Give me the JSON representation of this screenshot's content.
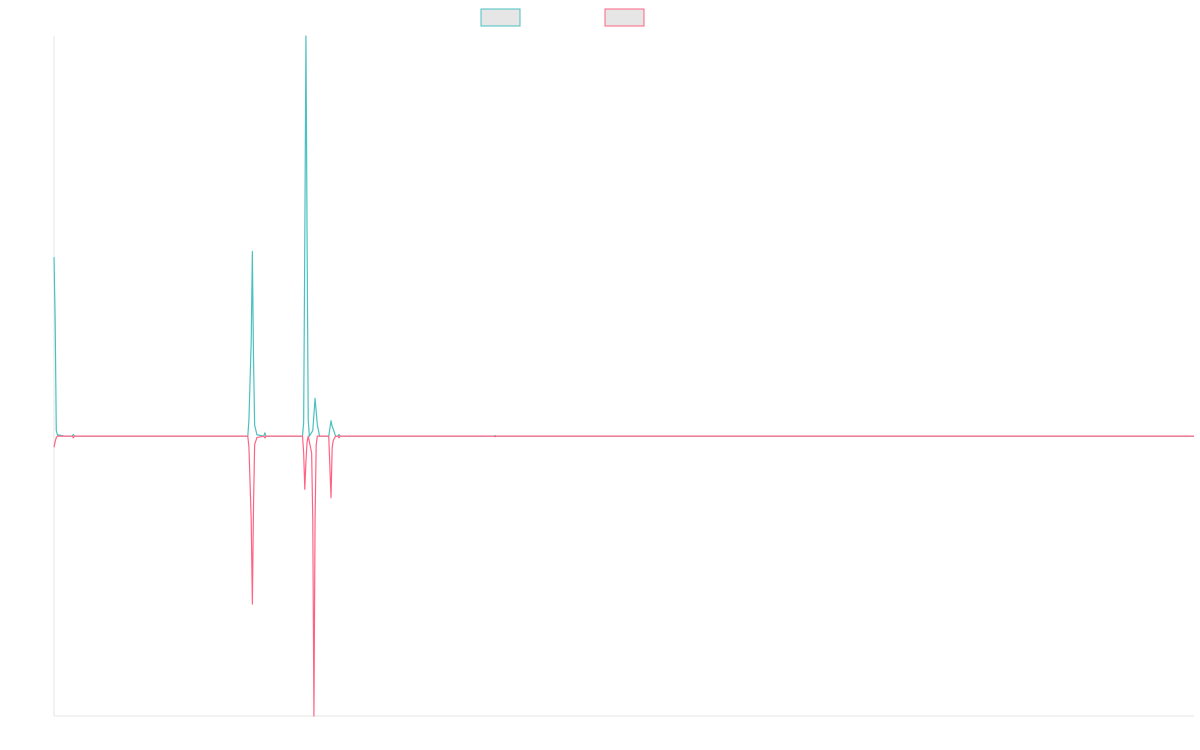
{
  "chart_data": {
    "type": "line",
    "title": "",
    "xlabel": "",
    "ylabel": "",
    "grid": false,
    "legend_position": "top-center",
    "x_range": [
      0,
      1000
    ],
    "y_range": [
      -1000,
      1430
    ],
    "colors": {
      "series_1": "#4bc0c0",
      "series_2": "#ff6384",
      "legend_fill": "#e6e6e6",
      "axis": "#e6e6e6"
    },
    "series": [
      {
        "key": "series_1",
        "name": "",
        "points": [
          [
            0,
            640
          ],
          [
            1,
            420
          ],
          [
            2,
            20
          ],
          [
            3,
            5
          ],
          [
            10,
            0
          ],
          [
            16,
            0
          ],
          [
            17,
            6
          ],
          [
            18,
            0
          ],
          [
            170,
            0
          ],
          [
            171,
            60
          ],
          [
            173,
            340
          ],
          [
            174,
            660
          ],
          [
            175,
            280
          ],
          [
            176,
            40
          ],
          [
            178,
            5
          ],
          [
            184,
            0
          ],
          [
            185,
            12
          ],
          [
            186,
            0
          ],
          [
            218,
            0
          ],
          [
            219,
            50
          ],
          [
            220,
            700
          ],
          [
            221,
            1430
          ],
          [
            222,
            700
          ],
          [
            223,
            60
          ],
          [
            224,
            0
          ],
          [
            227,
            20
          ],
          [
            229,
            135
          ],
          [
            231,
            40
          ],
          [
            233,
            0
          ],
          [
            241,
            0
          ],
          [
            243,
            55
          ],
          [
            244,
            35
          ],
          [
            245,
            25
          ],
          [
            247,
            0
          ],
          [
            249,
            0
          ],
          [
            250,
            6
          ],
          [
            251,
            0
          ],
          [
            386,
            0
          ],
          [
            387,
            2
          ],
          [
            388,
            0
          ],
          [
            1000,
            0
          ]
        ]
      },
      {
        "key": "series_2",
        "name": "",
        "points": [
          [
            0,
            -40
          ],
          [
            1,
            -20
          ],
          [
            2,
            -5
          ],
          [
            3,
            0
          ],
          [
            10,
            0
          ],
          [
            16,
            0
          ],
          [
            17,
            -6
          ],
          [
            18,
            0
          ],
          [
            170,
            0
          ],
          [
            171,
            -40
          ],
          [
            173,
            -300
          ],
          [
            174,
            -600
          ],
          [
            175,
            -250
          ],
          [
            176,
            -30
          ],
          [
            178,
            -5
          ],
          [
            184,
            0
          ],
          [
            185,
            -6
          ],
          [
            186,
            0
          ],
          [
            218,
            0
          ],
          [
            219,
            -60
          ],
          [
            220,
            -190
          ],
          [
            221,
            -90
          ],
          [
            222,
            -20
          ],
          [
            223,
            0
          ],
          [
            226,
            -60
          ],
          [
            227,
            -300
          ],
          [
            228,
            -1000
          ],
          [
            229,
            -300
          ],
          [
            230,
            -30
          ],
          [
            231,
            0
          ],
          [
            241,
            0
          ],
          [
            243,
            -220
          ],
          [
            244,
            -40
          ],
          [
            245,
            -15
          ],
          [
            247,
            0
          ],
          [
            249,
            0
          ],
          [
            250,
            -6
          ],
          [
            251,
            0
          ],
          [
            386,
            0
          ],
          [
            387,
            -2
          ],
          [
            388,
            0
          ],
          [
            1000,
            0
          ]
        ]
      }
    ]
  }
}
